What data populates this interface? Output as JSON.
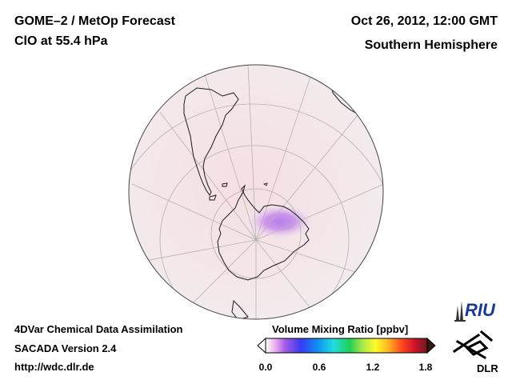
{
  "header": {
    "title": "GOME–2 / MetOp Forecast",
    "subtitle": "ClO at 55.4 hPa",
    "date": "Oct 26, 2012, 12:00 GMT",
    "region": "Southern Hemisphere"
  },
  "footer": {
    "line1": "4DVar Chemical Data Assimilation",
    "line2": "SACADA Version 2.4",
    "line3": "http://wdc.dlr.de"
  },
  "colorbar": {
    "title": "Volume Mixing Ratio [ppbv]",
    "ticks": [
      "0.0",
      "0.6",
      "1.2",
      "1.8"
    ],
    "range": [
      0.0,
      1.8
    ]
  },
  "logos": {
    "riu": "RIU",
    "dlr": "DLR"
  },
  "colors": {
    "ocean_tint": "#f3e6e8",
    "coastline": "#1a1a1a",
    "graticule": "#b8b0b4",
    "clo_peak": "#c389e6"
  }
}
